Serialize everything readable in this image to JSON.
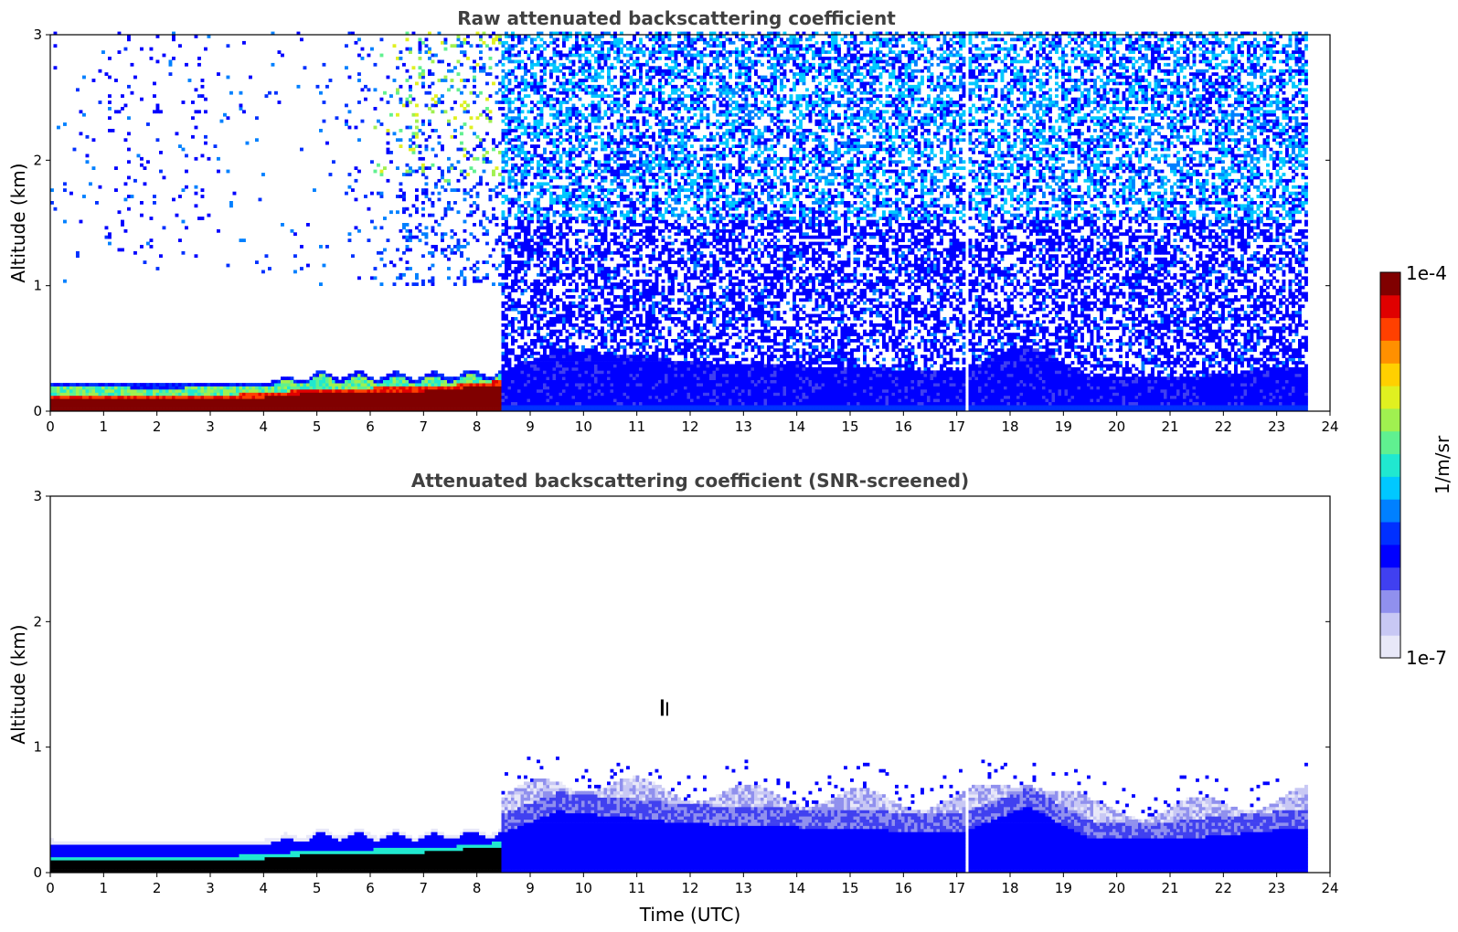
{
  "chart_data": [
    {
      "type": "heatmap",
      "title": "Raw attenuated backscattering coefficient",
      "xlabel": "",
      "ylabel": "Altitude (km)",
      "xlim": [
        0,
        24
      ],
      "ylim": [
        0,
        3
      ],
      "xticks": [
        0,
        1,
        2,
        3,
        4,
        5,
        6,
        7,
        8,
        9,
        10,
        11,
        12,
        13,
        14,
        15,
        16,
        17,
        18,
        19,
        20,
        21,
        22,
        23,
        24
      ],
      "yticks": [
        0,
        1,
        2,
        3
      ],
      "data_end_time": 23.55,
      "step_change_time": 8.4,
      "gap_time": 17.15,
      "boundary_layer": [
        {
          "time": 0,
          "top_km": 0.22,
          "core_km": 0.08
        },
        {
          "time": 2,
          "top_km": 0.2,
          "core_km": 0.08
        },
        {
          "time": 4,
          "top_km": 0.22,
          "core_km": 0.1
        },
        {
          "time": 5,
          "top_km": 0.28,
          "core_km": 0.14
        },
        {
          "time": 7,
          "top_km": 0.27,
          "core_km": 0.15
        },
        {
          "time": 8.4,
          "top_km": 0.3,
          "core_km": 0.2
        },
        {
          "time": 9.5,
          "top_km": 0.48,
          "core_km": 0.25
        },
        {
          "time": 12,
          "top_km": 0.38,
          "core_km": 0.2
        },
        {
          "time": 16,
          "top_km": 0.32,
          "core_km": 0.15
        },
        {
          "time": 17,
          "top_km": 0.3,
          "core_km": 0.15
        },
        {
          "time": 18.3,
          "top_km": 0.52,
          "core_km": 0.3
        },
        {
          "time": 19.5,
          "top_km": 0.25,
          "core_km": 0.12
        },
        {
          "time": 21,
          "top_km": 0.25,
          "core_km": 0.1
        },
        {
          "time": 23.55,
          "top_km": 0.35,
          "core_km": 0.15
        }
      ]
    },
    {
      "type": "heatmap",
      "title": "Attenuated backscattering coefficient (SNR-screened)",
      "xlabel": "Time (UTC)",
      "ylabel": "Altitude (km)",
      "xlim": [
        0,
        24
      ],
      "ylim": [
        0,
        3
      ],
      "xticks": [
        0,
        1,
        2,
        3,
        4,
        5,
        6,
        7,
        8,
        9,
        10,
        11,
        12,
        13,
        14,
        15,
        16,
        17,
        18,
        19,
        20,
        21,
        22,
        23,
        24
      ],
      "yticks": [
        0,
        1,
        2,
        3
      ],
      "data_end_time": 23.55,
      "step_change_time": 8.4,
      "gap_time": 17.15,
      "cloud": {
        "time": 11.45,
        "bottom_km": 1.25,
        "top_km": 1.38
      }
    }
  ],
  "colorbar": {
    "label": "1/m/sr",
    "max_label": "1e-4",
    "min_label": "1e-7",
    "scale": "log",
    "range": [
      1e-07,
      0.0001
    ],
    "colors": [
      "#e8e8f8",
      "#c8c8f4",
      "#9090ee",
      "#4040f0",
      "#0000ff",
      "#0030ff",
      "#0080ff",
      "#00c8ff",
      "#20e8d0",
      "#60f090",
      "#a0f050",
      "#e0f020",
      "#ffd000",
      "#ff9000",
      "#ff4000",
      "#e00000",
      "#800000"
    ]
  }
}
